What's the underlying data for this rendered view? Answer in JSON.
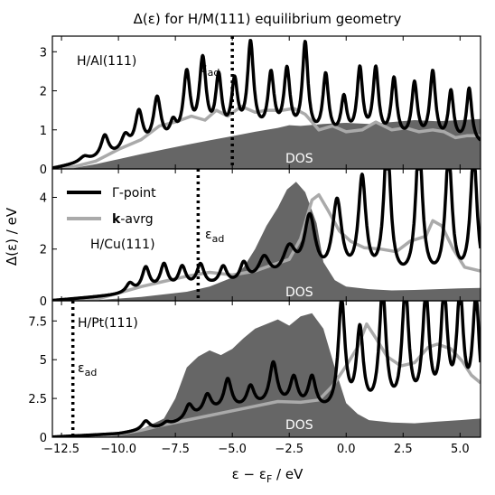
{
  "title": "Δ(ε) for H/M(111) equilibrium geometry",
  "ylabel": "Δ(ε) / eV",
  "xlabel": "ε − ε",
  "xlabel_sub": "F",
  "xlabel_unit": " / eV",
  "legend": [
    {
      "label_rest": "-point",
      "label_prefix": "Γ",
      "color": "#000000"
    },
    {
      "label_rest": "-avrg",
      "label_prefix": "k",
      "color": "#aaaaaa"
    }
  ],
  "colors": {
    "gamma": "#000000",
    "kavg": "#aaaaaa",
    "dos": "#666666",
    "eps_ad": "#000000"
  },
  "chart_data": [
    {
      "type": "line",
      "panel_label": "H/Al(111)",
      "eps_ad": -5.0,
      "eps_ad_label": "ε",
      "eps_ad_sub": "ad",
      "dos_label": "DOS",
      "xlim": [
        -12.9,
        5.9
      ],
      "ylim": [
        0,
        3.4
      ],
      "yticks": [
        0,
        1,
        2,
        3
      ],
      "xticks": [
        -12.5,
        -10.0,
        -7.5,
        -5.0,
        -2.5,
        0.0,
        2.5,
        5.0
      ],
      "dos": [
        [
          -12.9,
          0
        ],
        [
          -12,
          0.02
        ],
        [
          -11,
          0.12
        ],
        [
          -10,
          0.25
        ],
        [
          -9,
          0.38
        ],
        [
          -8,
          0.5
        ],
        [
          -7,
          0.62
        ],
        [
          -6,
          0.73
        ],
        [
          -5,
          0.84
        ],
        [
          -4,
          0.95
        ],
        [
          -3,
          1.05
        ],
        [
          -2.5,
          1.12
        ],
        [
          -2,
          1.1
        ],
        [
          -1,
          1.15
        ],
        [
          0,
          1.18
        ],
        [
          1,
          1.15
        ],
        [
          2,
          1.2
        ],
        [
          3,
          1.25
        ],
        [
          4,
          1.22
        ],
        [
          5,
          1.25
        ],
        [
          5.9,
          1.28
        ]
      ],
      "gamma_peaks": [
        [
          -11.5,
          0.28,
          0.25
        ],
        [
          -10.6,
          0.8,
          0.2
        ],
        [
          -9.7,
          0.75,
          0.22
        ],
        [
          -9.1,
          1.35,
          0.2
        ],
        [
          -8.3,
          1.7,
          0.2
        ],
        [
          -7.6,
          1.0,
          0.18
        ],
        [
          -7.0,
          2.3,
          0.18
        ],
        [
          -6.3,
          2.65,
          0.18
        ],
        [
          -5.6,
          2.2,
          0.16
        ],
        [
          -4.9,
          2.1,
          0.16
        ],
        [
          -4.2,
          3.1,
          0.16
        ],
        [
          -3.3,
          2.3,
          0.16
        ],
        [
          -2.6,
          2.4,
          0.16
        ],
        [
          -1.8,
          3.1,
          0.15
        ],
        [
          -0.9,
          2.3,
          0.15
        ],
        [
          -0.1,
          1.7,
          0.15
        ],
        [
          0.6,
          2.45,
          0.15
        ],
        [
          1.3,
          2.45,
          0.15
        ],
        [
          2.1,
          2.2,
          0.15
        ],
        [
          3.0,
          2.1,
          0.15
        ],
        [
          3.8,
          2.4,
          0.15
        ],
        [
          4.6,
          1.9,
          0.14
        ],
        [
          5.4,
          2.0,
          0.14
        ]
      ],
      "gamma_base": [
        [
          -12.9,
          0
        ],
        [
          -10,
          0.3
        ],
        [
          -7,
          0.6
        ],
        [
          -4,
          0.8
        ],
        [
          0,
          0.7
        ],
        [
          5.9,
          0.6
        ]
      ],
      "kavg": [
        [
          -12.9,
          0
        ],
        [
          -12,
          0.05
        ],
        [
          -11,
          0.2
        ],
        [
          -10,
          0.5
        ],
        [
          -9,
          0.75
        ],
        [
          -8.2,
          1.1
        ],
        [
          -7.5,
          1.2
        ],
        [
          -6.8,
          1.35
        ],
        [
          -6.2,
          1.25
        ],
        [
          -5.7,
          1.5
        ],
        [
          -5.2,
          1.35
        ],
        [
          -4.6,
          1.6
        ],
        [
          -4,
          1.45
        ],
        [
          -3.5,
          1.5
        ],
        [
          -2.8,
          1.5
        ],
        [
          -2.3,
          1.55
        ],
        [
          -1.8,
          1.4
        ],
        [
          -1.2,
          1.0
        ],
        [
          -0.6,
          1.1
        ],
        [
          0,
          0.95
        ],
        [
          0.7,
          1.0
        ],
        [
          1.3,
          1.2
        ],
        [
          2,
          1.0
        ],
        [
          2.6,
          1.05
        ],
        [
          3.2,
          0.95
        ],
        [
          3.8,
          1.0
        ],
        [
          4.3,
          0.95
        ],
        [
          4.8,
          0.8
        ],
        [
          5.3,
          0.85
        ],
        [
          5.9,
          0.85
        ]
      ]
    },
    {
      "type": "line",
      "panel_label": "H/Cu(111)",
      "eps_ad": -6.5,
      "eps_ad_label": "ε",
      "eps_ad_sub": "ad",
      "dos_label": "DOS",
      "xlim": [
        -12.9,
        5.9
      ],
      "ylim": [
        0,
        5.1
      ],
      "yticks": [
        0,
        2,
        4
      ],
      "xticks": [
        -12.5,
        -10.0,
        -7.5,
        -5.0,
        -2.5,
        0.0,
        2.5,
        5.0
      ],
      "dos": [
        [
          -12.9,
          0
        ],
        [
          -11,
          0.02
        ],
        [
          -9,
          0.15
        ],
        [
          -7,
          0.35
        ],
        [
          -6,
          0.55
        ],
        [
          -5,
          0.9
        ],
        [
          -4.5,
          1.3
        ],
        [
          -4,
          2.0
        ],
        [
          -3.5,
          2.9
        ],
        [
          -3,
          3.6
        ],
        [
          -2.6,
          4.3
        ],
        [
          -2.2,
          4.6
        ],
        [
          -1.8,
          4.2
        ],
        [
          -1.3,
          3.0
        ],
        [
          -1,
          1.5
        ],
        [
          -0.5,
          0.8
        ],
        [
          0,
          0.55
        ],
        [
          1,
          0.45
        ],
        [
          2,
          0.4
        ],
        [
          3,
          0.42
        ],
        [
          4,
          0.45
        ],
        [
          5,
          0.48
        ],
        [
          5.9,
          0.5
        ]
      ],
      "gamma_peaks": [
        [
          -9.5,
          0.6,
          0.2
        ],
        [
          -8.8,
          1.2,
          0.2
        ],
        [
          -8.0,
          1.3,
          0.2
        ],
        [
          -7.2,
          1.2,
          0.2
        ],
        [
          -6.4,
          1.3,
          0.2
        ],
        [
          -5.4,
          1.2,
          0.2
        ],
        [
          -4.5,
          1.3,
          0.2
        ],
        [
          -3.6,
          1.5,
          0.3
        ],
        [
          -2.5,
          1.8,
          0.35
        ],
        [
          -1.6,
          3.0,
          0.3
        ],
        [
          -0.4,
          3.6,
          0.25
        ],
        [
          0.7,
          4.5,
          0.2
        ],
        [
          1.8,
          6.0,
          0.18
        ],
        [
          3.2,
          6.0,
          0.18
        ],
        [
          4.5,
          5.5,
          0.18
        ],
        [
          5.6,
          5.5,
          0.18
        ]
      ],
      "gamma_base": [
        [
          -12.9,
          0
        ],
        [
          -10,
          0.2
        ],
        [
          -7,
          0.4
        ],
        [
          -4,
          0.6
        ],
        [
          0,
          0.6
        ],
        [
          5.9,
          0.6
        ]
      ],
      "kavg": [
        [
          -12.9,
          0
        ],
        [
          -11,
          0.05
        ],
        [
          -10,
          0.3
        ],
        [
          -9,
          0.55
        ],
        [
          -8,
          0.75
        ],
        [
          -7,
          0.95
        ],
        [
          -6,
          1.1
        ],
        [
          -5,
          1.0
        ],
        [
          -4,
          1.15
        ],
        [
          -3.2,
          1.4
        ],
        [
          -2.5,
          1.6
        ],
        [
          -2,
          2.4
        ],
        [
          -1.5,
          3.9
        ],
        [
          -1.2,
          4.1
        ],
        [
          -0.8,
          3.5
        ],
        [
          -0.3,
          2.7
        ],
        [
          0.2,
          2.3
        ],
        [
          0.8,
          2.05
        ],
        [
          1.5,
          2.0
        ],
        [
          2.2,
          1.9
        ],
        [
          2.8,
          2.3
        ],
        [
          3.5,
          2.5
        ],
        [
          3.8,
          3.1
        ],
        [
          4.2,
          2.9
        ],
        [
          4.7,
          2.0
        ],
        [
          5.2,
          1.3
        ],
        [
          5.9,
          1.15
        ]
      ]
    },
    {
      "type": "line",
      "panel_label": "H/Pt(111)",
      "eps_ad": -12.0,
      "eps_ad_label": "ε",
      "eps_ad_sub": "ad",
      "dos_label": "DOS",
      "xlim": [
        -12.9,
        5.9
      ],
      "ylim": [
        0,
        8.8
      ],
      "yticks": [
        0.0,
        2.5,
        5.0,
        7.5
      ],
      "xticks": [
        -12.5,
        -10.0,
        -7.5,
        -5.0,
        -2.5,
        0.0,
        2.5,
        5.0
      ],
      "dos": [
        [
          -12.9,
          0
        ],
        [
          -11,
          0.05
        ],
        [
          -10,
          0.2
        ],
        [
          -9,
          0.5
        ],
        [
          -8,
          1.2
        ],
        [
          -7.5,
          2.5
        ],
        [
          -7,
          4.5
        ],
        [
          -6.5,
          5.2
        ],
        [
          -6,
          5.6
        ],
        [
          -5.5,
          5.3
        ],
        [
          -5,
          5.7
        ],
        [
          -4.5,
          6.4
        ],
        [
          -4,
          7.0
        ],
        [
          -3.5,
          7.3
        ],
        [
          -3,
          7.6
        ],
        [
          -2.5,
          7.2
        ],
        [
          -2,
          7.8
        ],
        [
          -1.5,
          8.0
        ],
        [
          -1,
          7.0
        ],
        [
          -0.5,
          4.5
        ],
        [
          0,
          2.2
        ],
        [
          0.5,
          1.5
        ],
        [
          1,
          1.1
        ],
        [
          2,
          0.95
        ],
        [
          3,
          0.9
        ],
        [
          4,
          1.0
        ],
        [
          5,
          1.1
        ],
        [
          5.9,
          1.2
        ]
      ],
      "gamma_peaks": [
        [
          -8.8,
          1.0,
          0.2
        ],
        [
          -7.9,
          0.9,
          0.2
        ],
        [
          -6.9,
          2.0,
          0.2
        ],
        [
          -6.1,
          2.6,
          0.2
        ],
        [
          -5.2,
          3.6,
          0.2
        ],
        [
          -4.2,
          3.1,
          0.2
        ],
        [
          -3.2,
          4.6,
          0.2
        ],
        [
          -2.3,
          3.6,
          0.2
        ],
        [
          -1.5,
          3.6,
          0.2
        ],
        [
          -0.2,
          8.5,
          0.18
        ],
        [
          0.6,
          6.5,
          0.18
        ],
        [
          1.6,
          9.0,
          0.18
        ],
        [
          2.6,
          9.0,
          0.18
        ],
        [
          3.5,
          8.5,
          0.18
        ],
        [
          4.3,
          8.5,
          0.18
        ],
        [
          5.0,
          8.5,
          0.18
        ],
        [
          5.7,
          8.5,
          0.18
        ]
      ],
      "gamma_base": [
        [
          -12.9,
          0
        ],
        [
          -10,
          0.2
        ],
        [
          -8,
          0.6
        ],
        [
          -6,
          1.5
        ],
        [
          -3,
          1.9
        ],
        [
          0,
          1.2
        ],
        [
          5.9,
          1.0
        ]
      ],
      "kavg": [
        [
          -12.9,
          0
        ],
        [
          -11,
          0.05
        ],
        [
          -10,
          0.2
        ],
        [
          -9,
          0.45
        ],
        [
          -8,
          0.8
        ],
        [
          -7,
          1.1
        ],
        [
          -6,
          1.4
        ],
        [
          -5,
          1.7
        ],
        [
          -4,
          2.0
        ],
        [
          -3,
          2.3
        ],
        [
          -2,
          2.25
        ],
        [
          -1.2,
          2.4
        ],
        [
          -0.6,
          3.3
        ],
        [
          0,
          4.6
        ],
        [
          0.5,
          5.8
        ],
        [
          0.9,
          7.3
        ],
        [
          1.3,
          6.4
        ],
        [
          1.8,
          5.2
        ],
        [
          2.4,
          4.6
        ],
        [
          3.0,
          4.8
        ],
        [
          3.6,
          5.8
        ],
        [
          4.0,
          6.0
        ],
        [
          4.6,
          5.7
        ],
        [
          5.1,
          4.9
        ],
        [
          5.5,
          4.0
        ],
        [
          5.9,
          3.5
        ]
      ]
    }
  ]
}
